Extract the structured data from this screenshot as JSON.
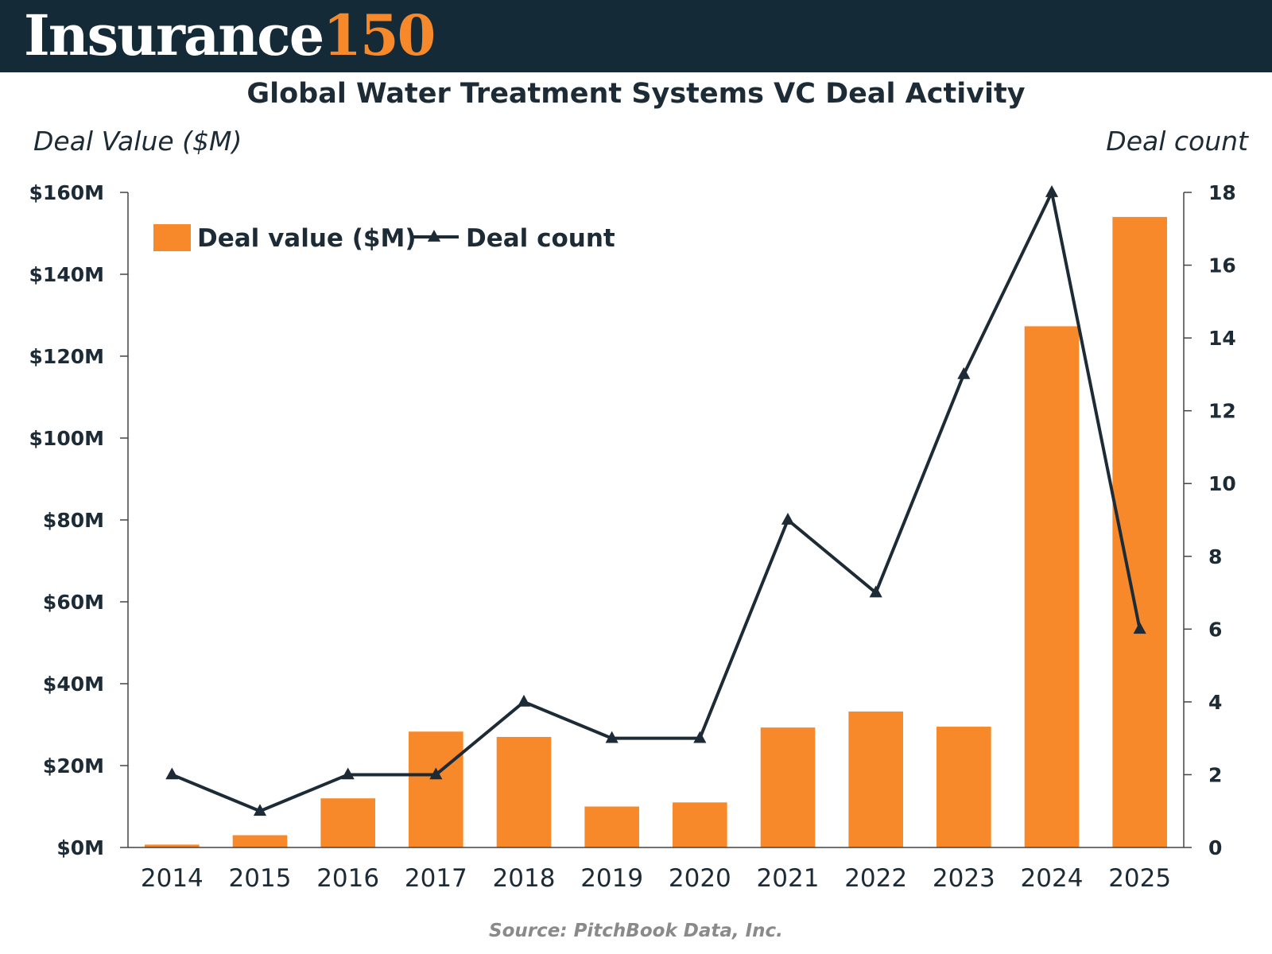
{
  "header": {
    "logo_word": "Insurance",
    "logo_number": "150"
  },
  "colors": {
    "header_bg": "#142a36",
    "accent": "#f7892a",
    "bar": "#f7892a",
    "line": "#1c2b35",
    "text": "#1c2b35",
    "source_text": "#8a8a8a"
  },
  "source": "Source: PitchBook Data, Inc.",
  "chart_data": {
    "type": "bar+line",
    "title": "Global Water Treatment Systems VC Deal Activity",
    "ylabel_left": "Deal Value ($M)",
    "ylabel_right": "Deal count",
    "categories": [
      "2014",
      "2015",
      "2016",
      "2017",
      "2018",
      "2019",
      "2020",
      "2021",
      "2022",
      "2023",
      "2024",
      "2025"
    ],
    "series": [
      {
        "name": "Deal value ($M)",
        "type": "bar",
        "axis": "left",
        "values": [
          0.7,
          3,
          12,
          28.3,
          27,
          10,
          11,
          29.3,
          33.2,
          29.5,
          127.3,
          154
        ]
      },
      {
        "name": "Deal count",
        "type": "line",
        "axis": "right",
        "marker": "triangle",
        "values": [
          2,
          1,
          2,
          2,
          4,
          3,
          3,
          9,
          7,
          13,
          18,
          6
        ]
      }
    ],
    "ylim_left": [
      0,
      160
    ],
    "yticks_left": [
      0,
      20,
      40,
      60,
      80,
      100,
      120,
      140,
      160
    ],
    "ytick_labels_left": [
      "$0M",
      "$20M",
      "$40M",
      "$60M",
      "$80M",
      "$100M",
      "$120M",
      "$140M",
      "$160M"
    ],
    "ylim_right": [
      0,
      18
    ],
    "yticks_right": [
      0,
      2,
      4,
      6,
      8,
      10,
      12,
      14,
      16,
      18
    ],
    "ytick_labels_right": [
      "0",
      "2",
      "4",
      "6",
      "8",
      "10",
      "12",
      "14",
      "16",
      "18"
    ],
    "legend_placement": "top-left",
    "grid": false
  }
}
